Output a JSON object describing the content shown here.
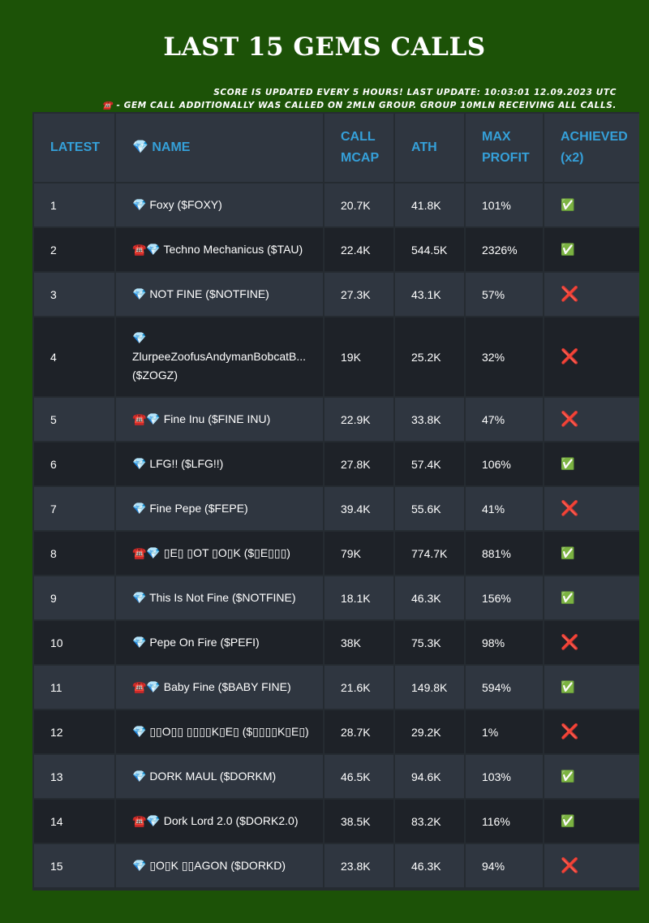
{
  "title": "LAST 15 GEMS CALLS",
  "notes": {
    "line1": "SCORE IS UPDATED EVERY 5 HOURS! LAST UPDATE: 10:03:01 12.09.2023 UTC",
    "line2": "☎️ - GEM CALL ADDITIONALLY WAS CALLED ON 2MLN GROUP. GROUP 10MLN RECEIVING ALL CALLS."
  },
  "headers": {
    "latest": "LATEST",
    "name": "💎 NAME",
    "call_mcap": "CALL MCAP",
    "ath": "ATH",
    "max_profit": "MAX PROFIT",
    "achieved": "ACHIEVED (x2)"
  },
  "colors": {
    "background": "#1c5207",
    "header_text": "#35a0d9",
    "row_dark": "#1e2228",
    "row_light": "#2f3640"
  },
  "rows": [
    {
      "latest": "1",
      "name": "💎 Foxy ($FOXY)",
      "call_mcap": "20.7K",
      "ath": "41.8K",
      "max_profit": "101%",
      "achieved": "✅"
    },
    {
      "latest": "2",
      "name": "☎️💎 Techno Mechanicus ($TAU)",
      "call_mcap": "22.4K",
      "ath": "544.5K",
      "max_profit": "2326%",
      "achieved": "✅"
    },
    {
      "latest": "3",
      "name": "💎 NOT FINE ($NOTFINE)",
      "call_mcap": "27.3K",
      "ath": "43.1K",
      "max_profit": "57%",
      "achieved": "❌"
    },
    {
      "latest": "4",
      "name": "💎 ZlurpeeZoofusAndymanBobcatB... ($ZOGZ)",
      "call_mcap": "19K",
      "ath": "25.2K",
      "max_profit": "32%",
      "achieved": "❌"
    },
    {
      "latest": "5",
      "name": "☎️💎 Fine Inu ($FINE INU)",
      "call_mcap": "22.9K",
      "ath": "33.8K",
      "max_profit": "47%",
      "achieved": "❌"
    },
    {
      "latest": "6",
      "name": "💎 LFG!! ($LFG!!)",
      "call_mcap": "27.8K",
      "ath": "57.4K",
      "max_profit": "106%",
      "achieved": "✅"
    },
    {
      "latest": "7",
      "name": "💎 Fine Pepe ($FEPE)",
      "call_mcap": "39.4K",
      "ath": "55.6K",
      "max_profit": "41%",
      "achieved": "❌"
    },
    {
      "latest": "8",
      "name": "☎️💎 ▯E▯ ▯OT ▯O▯K ($▯E▯▯▯)",
      "call_mcap": "79K",
      "ath": "774.7K",
      "max_profit": "881%",
      "achieved": "✅"
    },
    {
      "latest": "9",
      "name": "💎 This Is Not Fine ($NOTFINE)",
      "call_mcap": "18.1K",
      "ath": "46.3K",
      "max_profit": "156%",
      "achieved": "✅"
    },
    {
      "latest": "10",
      "name": "💎 Pepe On Fire ($PEFI)",
      "call_mcap": "38K",
      "ath": "75.3K",
      "max_profit": "98%",
      "achieved": "❌"
    },
    {
      "latest": "11",
      "name": "☎️💎 Baby Fine ($BABY FINE)",
      "call_mcap": "21.6K",
      "ath": "149.8K",
      "max_profit": "594%",
      "achieved": "✅"
    },
    {
      "latest": "12",
      "name": "💎 ▯▯O▯▯ ▯▯▯▯K▯E▯ ($▯▯▯▯K▯E▯)",
      "call_mcap": "28.7K",
      "ath": "29.2K",
      "max_profit": "1%",
      "achieved": "❌"
    },
    {
      "latest": "13",
      "name": "💎 DORK MAUL ($DORKM)",
      "call_mcap": "46.5K",
      "ath": "94.6K",
      "max_profit": "103%",
      "achieved": "✅"
    },
    {
      "latest": "14",
      "name": "☎️💎 Dork Lord 2.0 ($DORK2.0)",
      "call_mcap": "38.5K",
      "ath": "83.2K",
      "max_profit": "116%",
      "achieved": "✅"
    },
    {
      "latest": "15",
      "name": "💎 ▯O▯K ▯▯AGON ($DORKD)",
      "call_mcap": "23.8K",
      "ath": "46.3K",
      "max_profit": "94%",
      "achieved": "❌"
    }
  ]
}
